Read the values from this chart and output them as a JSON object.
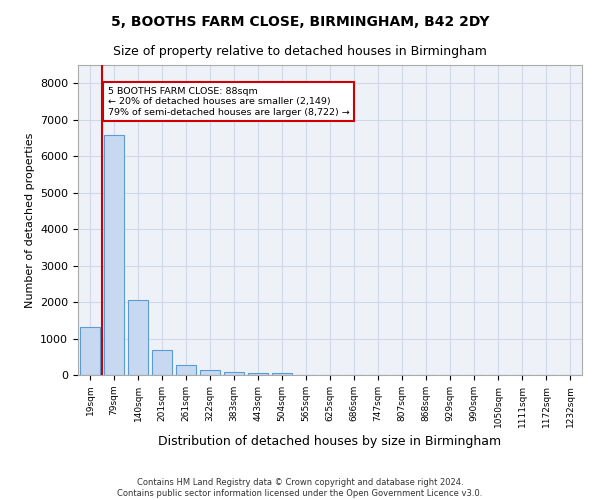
{
  "title1": "5, BOOTHS FARM CLOSE, BIRMINGHAM, B42 2DY",
  "title2": "Size of property relative to detached houses in Birmingham",
  "xlabel": "Distribution of detached houses by size in Birmingham",
  "ylabel": "Number of detached properties",
  "bin_labels": [
    "19sqm",
    "79sqm",
    "140sqm",
    "201sqm",
    "261sqm",
    "322sqm",
    "383sqm",
    "443sqm",
    "504sqm",
    "565sqm",
    "625sqm",
    "686sqm",
    "747sqm",
    "807sqm",
    "868sqm",
    "929sqm",
    "990sqm",
    "1050sqm",
    "1111sqm",
    "1172sqm",
    "1232sqm"
  ],
  "bar_heights": [
    1310,
    6580,
    2070,
    690,
    270,
    140,
    85,
    50,
    50,
    0,
    0,
    0,
    0,
    0,
    0,
    0,
    0,
    0,
    0,
    0,
    0
  ],
  "bar_color": "#c6d9f0",
  "bar_edge_color": "#5b9bd5",
  "annotation_text": "5 BOOTHS FARM CLOSE: 88sqm\n← 20% of detached houses are smaller (2,149)\n79% of semi-detached houses are larger (8,722) →",
  "annotation_box_color": "#ffffff",
  "annotation_box_edge": "#cc0000",
  "red_line_color": "#cc0000",
  "ylim": [
    0,
    8500
  ],
  "yticks": [
    0,
    1000,
    2000,
    3000,
    4000,
    5000,
    6000,
    7000,
    8000
  ],
  "footnote1": "Contains HM Land Registry data © Crown copyright and database right 2024.",
  "footnote2": "Contains public sector information licensed under the Open Government Licence v3.0.",
  "grid_color": "#d0d8e8",
  "background_color": "#eef2f8"
}
